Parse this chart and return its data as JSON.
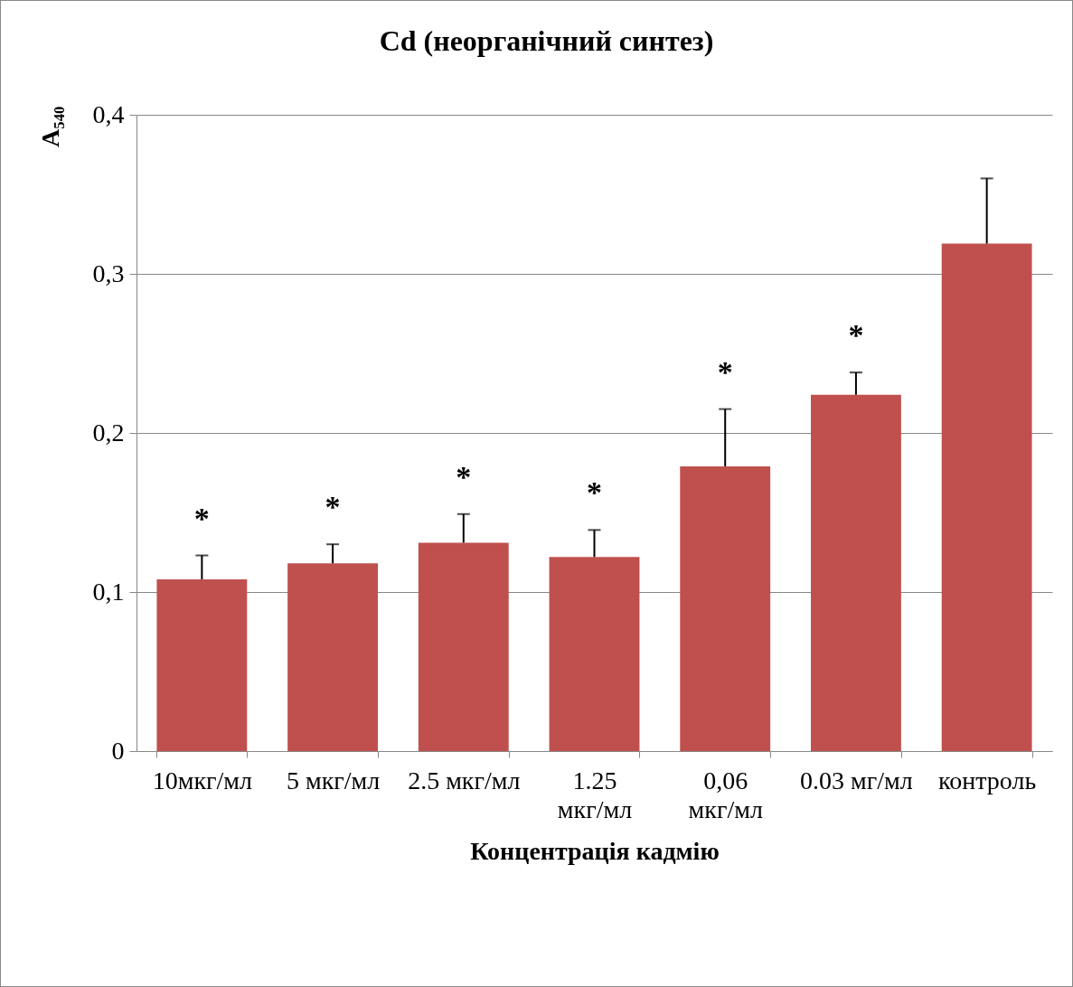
{
  "chart_data": {
    "type": "bar",
    "title": "Cd (неорганічний синтез)",
    "xlabel": "Концентрація кадмію",
    "ylabel": "A₅₄₀",
    "categories": [
      "10мкг/мл",
      "5 мкг/мл",
      "2.5 мкг/мл",
      "1.25 мкг/мл",
      "0,06 мкг/мл",
      "0.03 мг/мл",
      "контроль"
    ],
    "values": [
      0.108,
      0.118,
      0.131,
      0.122,
      0.179,
      0.224,
      0.319
    ],
    "errors": [
      0.015,
      0.012,
      0.018,
      0.017,
      0.036,
      0.014,
      0.041
    ],
    "color": "#c0504d",
    "ylim": [
      0,
      0.4
    ],
    "yticks": [
      0,
      {
        "value": 0.1,
        "label": "0,1"
      },
      {
        "value": 0.2,
        "label": "0,2"
      },
      {
        "value": 0.3,
        "label": "0,3"
      },
      {
        "value": 0.4,
        "label": "0,4"
      }
    ],
    "grid": "y",
    "annotations": [
      "*",
      "*",
      "*",
      "*",
      "*",
      "*"
    ]
  }
}
